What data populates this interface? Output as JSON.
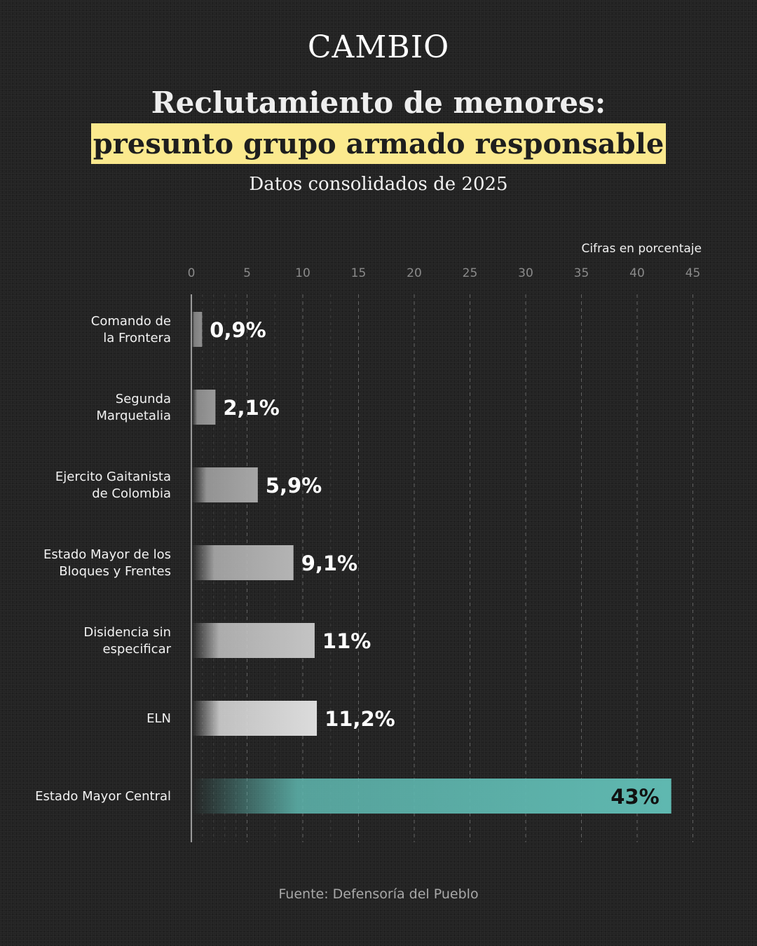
{
  "header": {
    "brand": "CAMBIO",
    "title_line1": "Reclutamiento de menores:",
    "title_line2": "presunto grupo armado responsable",
    "subtitle": "Datos consolidados de 2025"
  },
  "footer": {
    "source": "Fuente: Defensoría del Pueblo"
  },
  "colors": {
    "highlight": "#fbe98e",
    "teal_bar": "#5fb8b0",
    "gray_bar": "#c8c8c8",
    "background": "#232323"
  },
  "chart_data": {
    "type": "bar",
    "orientation": "horizontal",
    "unit_label": "Cifras en porcentaje",
    "xlim": [
      0,
      45
    ],
    "xticks": [
      0,
      5,
      10,
      15,
      20,
      25,
      30,
      35,
      40,
      45
    ],
    "grid": true,
    "categories": [
      [
        "Comando de",
        "la Frontera"
      ],
      [
        "Segunda",
        "Marquetalia"
      ],
      [
        "Ejercito Gaitanista",
        "de Colombia"
      ],
      [
        "Estado Mayor de los",
        "Bloques y Frentes"
      ],
      [
        "Disidencia sin",
        "especificar"
      ],
      [
        "ELN"
      ],
      [
        "Estado Mayor Central"
      ]
    ],
    "values": [
      0.9,
      2.1,
      5.9,
      9.1,
      11,
      11.2,
      43
    ],
    "value_labels": [
      "0,9%",
      "2,1%",
      "5,9%",
      "9,1%",
      "11%",
      "11,2%",
      "43%"
    ]
  }
}
